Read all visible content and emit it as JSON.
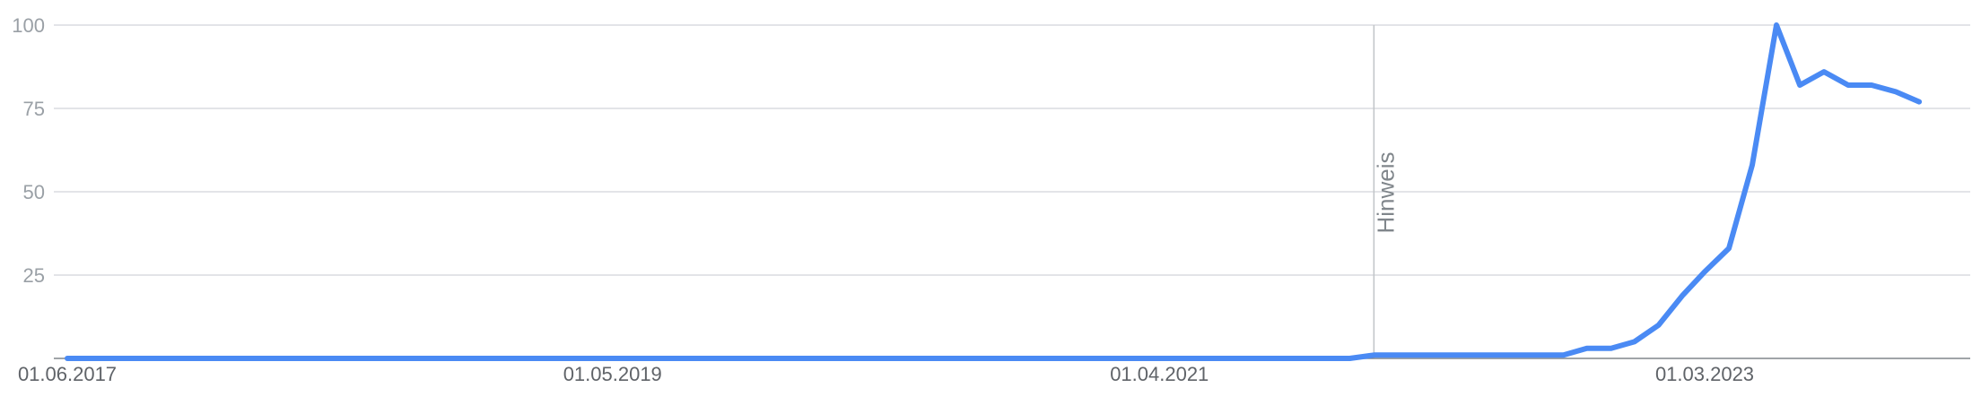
{
  "chart_data": {
    "type": "line",
    "title": "",
    "xlabel": "",
    "ylabel": "",
    "ylim": [
      0,
      100
    ],
    "yticks": [
      {
        "value": 25,
        "label": "25"
      },
      {
        "value": 50,
        "label": "50"
      },
      {
        "value": 75,
        "label": "75"
      },
      {
        "value": 100,
        "label": "100"
      }
    ],
    "xticks": [
      {
        "x": "2017-06-01",
        "label": "01.06.2017"
      },
      {
        "x": "2019-05-01",
        "label": "01.05.2019"
      },
      {
        "x": "2021-04-01",
        "label": "01.04.2021"
      },
      {
        "x": "2023-03-01",
        "label": "01.03.2023"
      }
    ],
    "annotations": [
      {
        "x": "2022-01-01",
        "label": "Hinweis"
      }
    ],
    "grid": true,
    "colors": {
      "series": "#4a8af4"
    },
    "series": [
      {
        "values": [
          {
            "x": "2017-06-01",
            "y": 0
          },
          {
            "x": "2021-12-01",
            "y": 0
          },
          {
            "x": "2022-01-01",
            "y": 1
          },
          {
            "x": "2022-09-01",
            "y": 1
          },
          {
            "x": "2022-10-01",
            "y": 3
          },
          {
            "x": "2022-11-01",
            "y": 3
          },
          {
            "x": "2022-12-01",
            "y": 5
          },
          {
            "x": "2023-01-01",
            "y": 10
          },
          {
            "x": "2023-02-01",
            "y": 19
          },
          {
            "x": "2023-03-01",
            "y": 26
          },
          {
            "x": "2023-04-01",
            "y": 33
          },
          {
            "x": "2023-05-01",
            "y": 58
          },
          {
            "x": "2023-06-01",
            "y": 100
          },
          {
            "x": "2023-07-01",
            "y": 82
          },
          {
            "x": "2023-08-01",
            "y": 86
          },
          {
            "x": "2023-09-01",
            "y": 82
          },
          {
            "x": "2023-10-01",
            "y": 82
          },
          {
            "x": "2023-11-01",
            "y": 80
          },
          {
            "x": "2023-12-01",
            "y": 77
          }
        ]
      }
    ]
  }
}
